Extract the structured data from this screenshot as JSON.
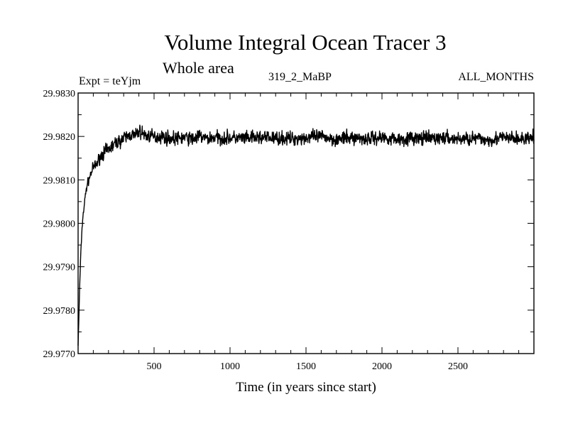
{
  "chart_data": {
    "type": "line",
    "title": "Volume Integral Ocean Tracer 3",
    "subtitle": "Whole area",
    "experiment": "Expt = teYjm",
    "run_label": "319_2_MaBP",
    "period_label": "ALL_MONTHS",
    "xlabel": "Time (in years since start)",
    "ylabel": "",
    "xlim": [
      0,
      3000
    ],
    "ylim": [
      29.977,
      29.983
    ],
    "x_ticks": [
      500,
      1000,
      1500,
      2000,
      2500
    ],
    "x_tick_labels": [
      "500",
      "1000",
      "1500",
      "2000",
      "2500"
    ],
    "y_ticks": [
      29.977,
      29.978,
      29.979,
      29.98,
      29.981,
      29.982,
      29.983
    ],
    "y_tick_labels": [
      "29.9770",
      "29.9780",
      "29.9790",
      "29.9800",
      "29.9810",
      "29.9820",
      "29.9830"
    ],
    "series": [
      {
        "name": "Volume integral ocean tracer 3",
        "color": "#000000",
        "x": [
          0,
          5,
          10,
          20,
          30,
          40,
          50,
          60,
          70,
          80,
          100,
          120,
          140,
          160,
          180,
          200,
          225,
          250,
          275,
          300,
          325,
          350,
          375,
          400,
          425,
          450,
          475,
          500,
          550,
          600,
          650,
          700,
          750,
          800,
          850,
          900,
          950,
          1000,
          1100,
          1200,
          1300,
          1400,
          1500,
          1600,
          1700,
          1800,
          1900,
          2000,
          2100,
          2200,
          2300,
          2400,
          2500,
          2600,
          2700,
          2750,
          2800,
          2900,
          3000
        ],
        "values": [
          29.9772,
          29.9778,
          29.9785,
          29.9795,
          29.9801,
          29.9804,
          29.9807,
          29.9809,
          29.981,
          29.9811,
          29.9813,
          29.98135,
          29.9815,
          29.9816,
          29.98165,
          29.9817,
          29.98178,
          29.98185,
          29.9819,
          29.98195,
          29.982,
          29.98205,
          29.982,
          29.98212,
          29.98208,
          29.982,
          29.98202,
          29.98198,
          29.982,
          29.98196,
          29.98195,
          29.98198,
          29.98194,
          29.982,
          29.98195,
          29.98198,
          29.98196,
          29.98197,
          29.98195,
          29.98198,
          29.98196,
          29.98195,
          29.98197,
          29.982,
          29.98193,
          29.98197,
          29.98195,
          29.98198,
          29.98194,
          29.98196,
          29.98195,
          29.98197,
          29.98194,
          29.98196,
          29.98192,
          29.98195,
          29.98197,
          29.98194,
          29.98196
        ],
        "noise_amplitude": 0.00012
      }
    ]
  }
}
